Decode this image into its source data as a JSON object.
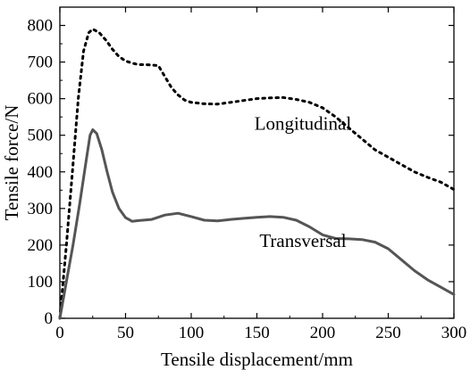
{
  "chart_data": {
    "type": "line",
    "xlabel": "Tensile displacement/mm",
    "ylabel": "Tensile force/N",
    "xlim": [
      0,
      300
    ],
    "ylim": [
      0,
      850
    ],
    "xticks": [
      "0",
      "50",
      "100",
      "150",
      "200",
      "250",
      "300"
    ],
    "yticks": [
      "0",
      "100",
      "200",
      "300",
      "400",
      "500",
      "600",
      "700",
      "800"
    ],
    "grid": false,
    "legend": "none",
    "series": [
      {
        "name": "Longitudinal",
        "style": "dotted",
        "color": "#000000",
        "points": [
          [
            0,
            0
          ],
          [
            5,
            200
          ],
          [
            10,
            420
          ],
          [
            14,
            600
          ],
          [
            18,
            730
          ],
          [
            22,
            780
          ],
          [
            25,
            790
          ],
          [
            30,
            780
          ],
          [
            35,
            760
          ],
          [
            40,
            735
          ],
          [
            45,
            715
          ],
          [
            50,
            703
          ],
          [
            55,
            697
          ],
          [
            60,
            693
          ],
          [
            65,
            693
          ],
          [
            70,
            692
          ],
          [
            75,
            690
          ],
          [
            80,
            660
          ],
          [
            85,
            630
          ],
          [
            90,
            610
          ],
          [
            95,
            596
          ],
          [
            100,
            590
          ],
          [
            110,
            586
          ],
          [
            120,
            585
          ],
          [
            130,
            590
          ],
          [
            140,
            595
          ],
          [
            150,
            600
          ],
          [
            160,
            602
          ],
          [
            170,
            603
          ],
          [
            180,
            598
          ],
          [
            190,
            590
          ],
          [
            200,
            575
          ],
          [
            210,
            550
          ],
          [
            220,
            520
          ],
          [
            230,
            490
          ],
          [
            240,
            460
          ],
          [
            250,
            440
          ],
          [
            260,
            420
          ],
          [
            270,
            400
          ],
          [
            280,
            385
          ],
          [
            290,
            372
          ],
          [
            300,
            352
          ]
        ]
      },
      {
        "name": "Transversal",
        "style": "solid",
        "color": "#555555",
        "points": [
          [
            0,
            0
          ],
          [
            5,
            100
          ],
          [
            10,
            200
          ],
          [
            15,
            310
          ],
          [
            20,
            430
          ],
          [
            23,
            500
          ],
          [
            25,
            515
          ],
          [
            28,
            505
          ],
          [
            32,
            460
          ],
          [
            36,
            400
          ],
          [
            40,
            345
          ],
          [
            45,
            300
          ],
          [
            50,
            275
          ],
          [
            55,
            265
          ],
          [
            60,
            267
          ],
          [
            70,
            270
          ],
          [
            80,
            282
          ],
          [
            90,
            287
          ],
          [
            100,
            278
          ],
          [
            110,
            268
          ],
          [
            120,
            266
          ],
          [
            130,
            270
          ],
          [
            140,
            273
          ],
          [
            150,
            276
          ],
          [
            160,
            278
          ],
          [
            170,
            276
          ],
          [
            180,
            268
          ],
          [
            190,
            250
          ],
          [
            200,
            228
          ],
          [
            210,
            218
          ],
          [
            220,
            217
          ],
          [
            230,
            215
          ],
          [
            240,
            208
          ],
          [
            250,
            190
          ],
          [
            260,
            160
          ],
          [
            270,
            130
          ],
          [
            280,
            105
          ],
          [
            290,
            85
          ],
          [
            300,
            65
          ]
        ]
      }
    ],
    "annotations": [
      {
        "text": "Longitudinal",
        "x": 185,
        "y": 515
      },
      {
        "text": "Transversal",
        "x": 185,
        "y": 195
      }
    ]
  }
}
